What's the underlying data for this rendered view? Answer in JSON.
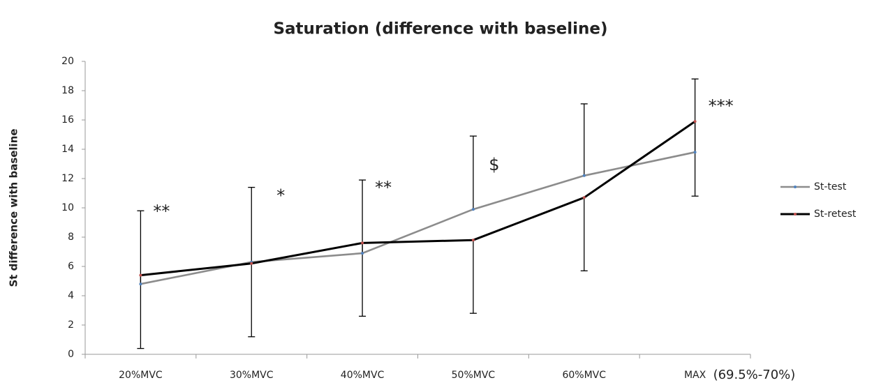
{
  "chart_data": {
    "type": "line",
    "title": "Saturation  (difference with baseline)",
    "y_label": "St difference with baseline",
    "categories": [
      "20%MVC",
      "30%MVC",
      "40%MVC",
      "50%MVC",
      "60%MVC",
      "MAX"
    ],
    "x_note": "(69.5%-70%)",
    "series": [
      {
        "name": "St-test",
        "color": "#8c8c8c",
        "marker_color": "#4f81bd",
        "error_direction": "up",
        "values": [
          4.8,
          6.3,
          6.9,
          9.9,
          12.2,
          13.8
        ],
        "errors": [
          5.0,
          5.1,
          5.0,
          5.0,
          4.9,
          5.0
        ]
      },
      {
        "name": "St-retest",
        "color": "#000000",
        "marker_color": "#c0504d",
        "error_direction": "down",
        "values": [
          5.4,
          6.2,
          7.6,
          7.8,
          10.7,
          15.9
        ],
        "errors": [
          5.0,
          5.0,
          5.0,
          5.0,
          5.0,
          5.1
        ]
      }
    ],
    "annotations": [
      "**",
      "*",
      "**",
      "$",
      null,
      "***"
    ],
    "ylim": [
      0,
      20
    ],
    "yticks": [
      0,
      2,
      4,
      6,
      8,
      10,
      12,
      14,
      16,
      18,
      20
    ],
    "grid": false,
    "legend": "right"
  }
}
